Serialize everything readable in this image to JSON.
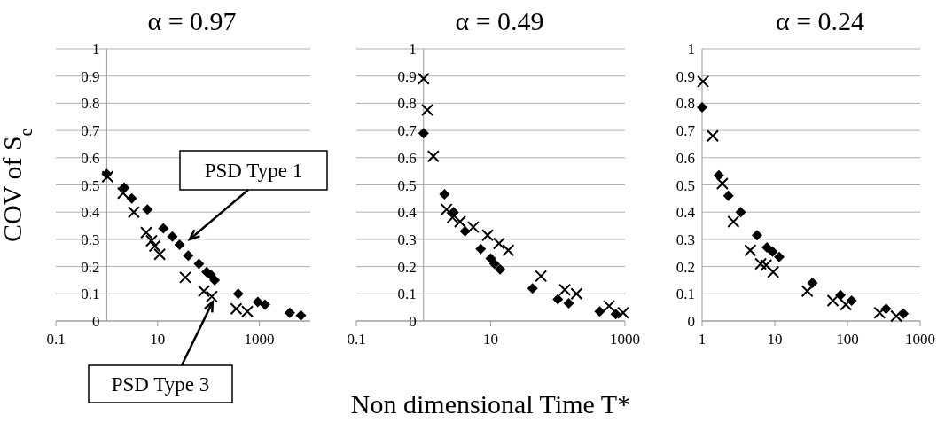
{
  "chart_data": [
    {
      "type": "scatter",
      "title": "α = 0.97",
      "ylabel": "COV of S$_{e}$",
      "log": "x",
      "xlim": [
        0.1,
        10000
      ],
      "xticks": [
        0.1,
        10,
        1000
      ],
      "ylim": [
        0,
        1
      ],
      "yticks": [
        0,
        0.1,
        0.2,
        0.3,
        0.4,
        0.5,
        0.6,
        0.7,
        0.8,
        0.9,
        1
      ],
      "grid": "y",
      "annotations": [
        "PSD Type 1",
        {
          "text": "PSD Type 3",
          "x": 116,
          "y": 0.09
        }
      ],
      "series": [
        {
          "color": "#000000",
          "marker": "diamond",
          "x": [
            1.0,
            2.2,
            3.1,
            6.3,
            13,
            19.5,
            27,
            40,
            65,
            92,
            110,
            132,
            384,
            930,
            1290,
            3950,
            6560
          ],
          "values": [
            0.54,
            0.49,
            0.45,
            0.41,
            0.34,
            0.31,
            0.28,
            0.24,
            0.21,
            0.18,
            0.17,
            0.15,
            0.1,
            0.07,
            0.06,
            0.03,
            0.02
          ]
        },
        {
          "color": "#000000",
          "marker": "cross",
          "x": [
            1.04,
            2.1,
            3.4,
            6.0,
            7.6,
            8.8,
            11,
            35,
            81,
            116,
            350,
            580
          ],
          "values": [
            0.53,
            0.47,
            0.4,
            0.325,
            0.295,
            0.275,
            0.245,
            0.16,
            0.11,
            0.09,
            0.045,
            0.035
          ]
        }
      ]
    },
    {
      "type": "scatter",
      "title": "α = 0.49",
      "xlabel": "Non dimensional Time T*",
      "log": "x",
      "xlim": [
        0.1,
        1000
      ],
      "xticks": [
        0.1,
        10,
        1000
      ],
      "ylim": [
        0,
        1
      ],
      "yticks": [
        0,
        0.1,
        0.2,
        0.3,
        0.4,
        0.5,
        0.6,
        0.7,
        0.8,
        0.9,
        1
      ],
      "grid": "y",
      "series": [
        {
          "color": "#000000",
          "marker": "diamond",
          "x": [
            1.0,
            2.05,
            2.8,
            4.15,
            7.1,
            10,
            11.4,
            13.8,
            42,
            100,
            145,
            420,
            730
          ],
          "values": [
            0.69,
            0.466,
            0.4,
            0.33,
            0.265,
            0.23,
            0.21,
            0.19,
            0.12,
            0.08,
            0.065,
            0.035,
            0.025
          ]
        },
        {
          "color": "#000000",
          "marker": "cross",
          "x": [
            1.0,
            1.14,
            1.4,
            2.2,
            2.7,
            3.5,
            5.5,
            9.0,
            13.3,
            18.3,
            56,
            127,
            190,
            580,
            940
          ],
          "values": [
            0.89,
            0.775,
            0.605,
            0.41,
            0.38,
            0.365,
            0.345,
            0.315,
            0.285,
            0.26,
            0.165,
            0.115,
            0.1,
            0.055,
            0.03
          ]
        }
      ]
    },
    {
      "type": "scatter",
      "title": "α = 0.24",
      "log": "x",
      "xlim": [
        1,
        1000
      ],
      "xticks": [
        1,
        10,
        100,
        1000
      ],
      "ylim": [
        0,
        1
      ],
      "yticks": [
        0,
        0.1,
        0.2,
        0.3,
        0.4,
        0.5,
        0.6,
        0.7,
        0.8,
        0.9,
        1
      ],
      "grid": "y",
      "series": [
        {
          "color": "#000000",
          "marker": "diamond",
          "x": [
            1.0,
            1.7,
            2.3,
            3.4,
            5.7,
            7.8,
            9.3,
            11.5,
            33,
            80,
            114,
            340,
            590
          ],
          "values": [
            0.785,
            0.535,
            0.46,
            0.4,
            0.315,
            0.27,
            0.255,
            0.235,
            0.14,
            0.095,
            0.075,
            0.045,
            0.027
          ]
        },
        {
          "color": "#000000",
          "marker": "cross",
          "x": [
            1.03,
            1.4,
            1.9,
            2.7,
            4.6,
            6.4,
            7.6,
            9.5,
            28,
            63,
            95,
            277,
            470
          ],
          "values": [
            0.88,
            0.68,
            0.505,
            0.365,
            0.26,
            0.21,
            0.205,
            0.18,
            0.11,
            0.075,
            0.06,
            0.03,
            0.018
          ]
        }
      ]
    }
  ]
}
